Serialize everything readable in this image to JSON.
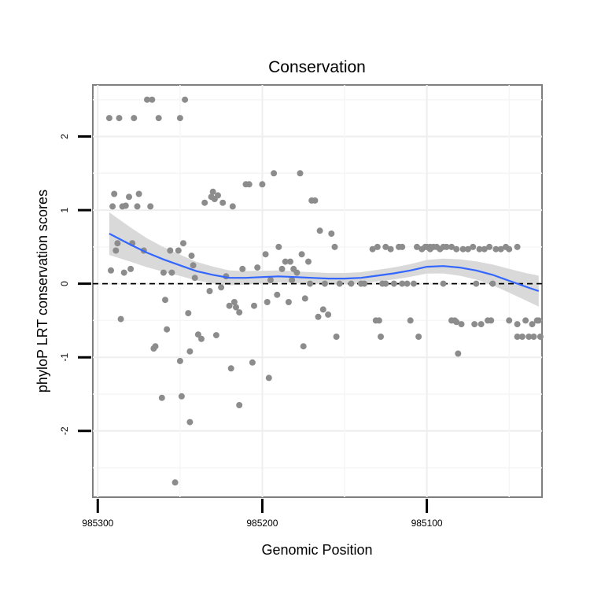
{
  "chart_data": {
    "type": "scatter",
    "title": "Conservation",
    "xlabel": "Genomic Position",
    "ylabel": "phyloP LRT conservation scores",
    "x_reversed": true,
    "xlim": [
      985303,
      985030
    ],
    "ylim": [
      -2.9,
      2.7
    ],
    "x_ticks": [
      985300,
      985200,
      985100
    ],
    "x_tick_labels": [
      "985300",
      "985200",
      "985100"
    ],
    "y_ticks": [
      2,
      1,
      0,
      -1,
      -2
    ],
    "y_tick_labels": [
      "2",
      "1",
      "0",
      "-1",
      "-2"
    ],
    "reference_line": {
      "y": 0,
      "style": "dashed"
    },
    "grid": true,
    "point_color": "#8c8c8c",
    "smooth_color": "#3366ff",
    "band_color": "#d9d9d9",
    "points": [
      [
        985293,
        2.25
      ],
      [
        985287,
        2.25
      ],
      [
        985278,
        2.25
      ],
      [
        985270,
        2.5
      ],
      [
        985267,
        2.5
      ],
      [
        985263,
        2.25
      ],
      [
        985250,
        2.25
      ],
      [
        985247,
        2.5
      ],
      [
        985292,
        0.18
      ],
      [
        985291,
        1.05
      ],
      [
        985290,
        1.22
      ],
      [
        985289,
        0.45
      ],
      [
        985288,
        0.55
      ],
      [
        985286,
        -0.48
      ],
      [
        985285,
        1.05
      ],
      [
        985284,
        0.15
      ],
      [
        985283,
        1.06
      ],
      [
        985281,
        1.18
      ],
      [
        985280,
        0.2
      ],
      [
        985279,
        0.55
      ],
      [
        985276,
        1.05
      ],
      [
        985275,
        1.22
      ],
      [
        985272,
        0.45
      ],
      [
        985268,
        1.05
      ],
      [
        985266,
        -0.88
      ],
      [
        985265,
        -0.85
      ],
      [
        985261,
        -1.55
      ],
      [
        985260,
        0.15
      ],
      [
        985259,
        -0.22
      ],
      [
        985258,
        -0.62
      ],
      [
        985256,
        0.45
      ],
      [
        985255,
        0.15
      ],
      [
        985251,
        0.45
      ],
      [
        985249,
        -1.53
      ],
      [
        985248,
        0.55
      ],
      [
        985245,
        -0.4
      ],
      [
        985244,
        -0.92
      ],
      [
        985243,
        0.38
      ],
      [
        985242,
        0.25
      ],
      [
        985241,
        0.08
      ],
      [
        985239,
        -0.69
      ],
      [
        985237,
        -0.75
      ],
      [
        985235,
        1.1
      ],
      [
        985232,
        -0.1
      ],
      [
        985231,
        1.18
      ],
      [
        985230,
        1.25
      ],
      [
        985229,
        1.15
      ],
      [
        985228,
        -0.7
      ],
      [
        985227,
        1.2
      ],
      [
        985225,
        -0.05
      ],
      [
        985224,
        1.1
      ],
      [
        985222,
        0.1
      ],
      [
        985220,
        -0.3
      ],
      [
        985219,
        -1.15
      ],
      [
        985218,
        1.05
      ],
      [
        985217,
        -0.25
      ],
      [
        985216,
        -0.32
      ],
      [
        985214,
        -0.39
      ],
      [
        985212,
        0.2
      ],
      [
        985210,
        1.35
      ],
      [
        985208,
        1.35
      ],
      [
        985205,
        -0.3
      ],
      [
        985203,
        0.22
      ],
      [
        985200,
        1.35
      ],
      [
        985198,
        0.4
      ],
      [
        985197,
        -0.25
      ],
      [
        985195,
        0.05
      ],
      [
        985193,
        1.5
      ],
      [
        985191,
        -0.15
      ],
      [
        985188,
        0.2
      ],
      [
        985186,
        0.3
      ],
      [
        985184,
        -0.25
      ],
      [
        985183,
        0.3
      ],
      [
        985182,
        0.05
      ],
      [
        985181,
        0.2
      ],
      [
        985179,
        0.15
      ],
      [
        985177,
        1.5
      ],
      [
        985176,
        0.4
      ],
      [
        985175,
        -0.85
      ],
      [
        985174,
        -0.2
      ],
      [
        985172,
        0.3
      ],
      [
        985171,
        0.0
      ],
      [
        985170,
        1.13
      ],
      [
        985168,
        1.13
      ],
      [
        985166,
        -0.45
      ],
      [
        985165,
        0.72
      ],
      [
        985163,
        -0.35
      ],
      [
        985162,
        0.0
      ],
      [
        985160,
        -0.42
      ],
      [
        985158,
        0.68
      ],
      [
        985156,
        0.5
      ],
      [
        985155,
        -0.72
      ],
      [
        985153,
        0.0
      ],
      [
        985146,
        0.0
      ],
      [
        985138,
        0.0
      ],
      [
        985133,
        0.47
      ],
      [
        985131,
        -0.5
      ],
      [
        985130,
        0.5
      ],
      [
        985129,
        -0.5
      ],
      [
        985128,
        -0.72
      ],
      [
        985127,
        0.0
      ],
      [
        985125,
        0.5
      ],
      [
        985122,
        0.47
      ],
      [
        985120,
        0.0
      ],
      [
        985117,
        0.5
      ],
      [
        985115,
        0.5
      ],
      [
        985112,
        0.0
      ],
      [
        985108,
        0.0
      ],
      [
        985106,
        0.5
      ],
      [
        985105,
        -0.72
      ],
      [
        985103,
        0.47
      ],
      [
        985101,
        0.5
      ],
      [
        985100,
        0.5
      ],
      [
        985098,
        0.5
      ],
      [
        985096,
        0.5
      ],
      [
        985094,
        0.5
      ],
      [
        985092,
        0.47
      ],
      [
        985090,
        0.5
      ],
      [
        985088,
        0.5
      ],
      [
        985085,
        0.5
      ],
      [
        985082,
        0.47
      ],
      [
        985078,
        0.47
      ],
      [
        985075,
        0.47
      ],
      [
        985072,
        0.5
      ],
      [
        985068,
        0.47
      ],
      [
        985065,
        0.47
      ],
      [
        985062,
        0.5
      ],
      [
        985058,
        0.47
      ],
      [
        985055,
        0.47
      ],
      [
        985052,
        0.5
      ],
      [
        985050,
        0.47
      ],
      [
        985045,
        0.5
      ],
      [
        985110,
        -0.5
      ],
      [
        985085,
        -0.5
      ],
      [
        985082,
        -0.52
      ],
      [
        985071,
        -0.55
      ],
      [
        985067,
        -0.55
      ],
      [
        985063,
        -0.5
      ],
      [
        985061,
        -0.5
      ],
      [
        985050,
        -0.5
      ],
      [
        985045,
        -0.55
      ],
      [
        985042,
        -0.72
      ],
      [
        985038,
        -0.72
      ],
      [
        985045,
        -0.72
      ],
      [
        985040,
        -0.5
      ],
      [
        985036,
        -0.55
      ],
      [
        985035,
        -0.72
      ],
      [
        985033,
        -0.5
      ],
      [
        985032,
        -0.5
      ],
      [
        985031,
        -0.72
      ],
      [
        985070,
        0.0
      ],
      [
        985060,
        0.0
      ],
      [
        985079,
        -0.55
      ],
      [
        985081,
        -0.95
      ],
      [
        985083,
        -0.5
      ],
      [
        985098,
        0.47
      ],
      [
        985115,
        0.0
      ],
      [
        985140,
        0.0
      ],
      [
        985125,
        0.0
      ],
      [
        985090,
        0.0
      ],
      [
        985253,
        -2.7
      ],
      [
        985250,
        -1.05
      ],
      [
        985244,
        -1.88
      ],
      [
        985214,
        -1.65
      ],
      [
        985206,
        -1.07
      ],
      [
        985196,
        -1.28
      ],
      [
        985190,
        0.5
      ]
    ],
    "smooth": [
      [
        985293,
        0.68
      ],
      [
        985280,
        0.53
      ],
      [
        985270,
        0.42
      ],
      [
        985260,
        0.33
      ],
      [
        985250,
        0.25
      ],
      [
        985240,
        0.17
      ],
      [
        985230,
        0.12
      ],
      [
        985220,
        0.08
      ],
      [
        985210,
        0.08
      ],
      [
        985200,
        0.09
      ],
      [
        985190,
        0.1
      ],
      [
        985180,
        0.09
      ],
      [
        985170,
        0.08
      ],
      [
        985160,
        0.07
      ],
      [
        985150,
        0.07
      ],
      [
        985140,
        0.08
      ],
      [
        985130,
        0.11
      ],
      [
        985120,
        0.14
      ],
      [
        985110,
        0.18
      ],
      [
        985100,
        0.23
      ],
      [
        985090,
        0.24
      ],
      [
        985080,
        0.22
      ],
      [
        985070,
        0.18
      ],
      [
        985060,
        0.12
      ],
      [
        985050,
        0.04
      ],
      [
        985040,
        -0.04
      ],
      [
        985032,
        -0.1
      ]
    ]
  }
}
